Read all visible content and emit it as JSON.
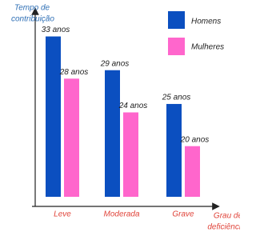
{
  "chart_data": {
    "type": "bar",
    "y_axis_label": [
      "Tempo de",
      "contribuição"
    ],
    "x_axis_label": [
      "Grau de",
      "deficiência"
    ],
    "categories": [
      "Leve",
      "Moderada",
      "Grave"
    ],
    "series": [
      {
        "name": "Homens",
        "color": "#0b4fc0",
        "values": [
          33,
          29,
          25
        ],
        "value_labels": [
          "33 anos",
          "29 anos",
          "25 anos"
        ]
      },
      {
        "name": "Mulheres",
        "color": "#ff66cc",
        "values": [
          28,
          24,
          20
        ],
        "value_labels": [
          "28 anos",
          "24 anos",
          "20 anos"
        ]
      }
    ],
    "ylim": [
      14,
      34
    ],
    "legend": "top-right"
  }
}
